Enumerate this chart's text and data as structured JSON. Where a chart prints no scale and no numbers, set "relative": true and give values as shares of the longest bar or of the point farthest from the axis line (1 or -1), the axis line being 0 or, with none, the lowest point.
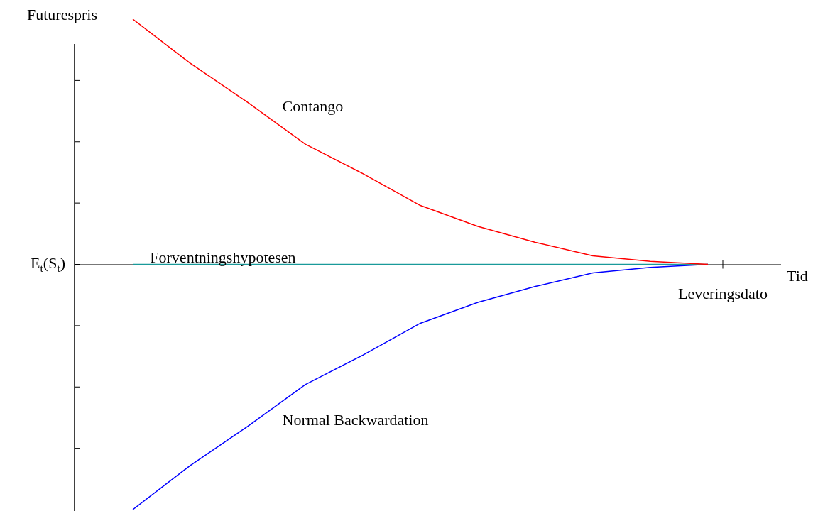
{
  "chart_data": {
    "type": "line",
    "ylabel": "Futurespris",
    "xlabel": "Tid",
    "relative": true,
    "legend": false,
    "marker": "none",
    "categories": [
      null,
      null,
      null,
      null,
      null,
      null,
      null,
      null,
      null,
      null,
      null
    ],
    "series": [
      {
        "name": "Contango",
        "color": "#ff0000",
        "values": [
          1,
          0.82,
          0.66,
          0.49,
          0.37,
          0.24,
          0.155,
          0.09,
          0.035,
          0.012,
          0
        ]
      },
      {
        "name": "Forventningshypotesen",
        "color": "#1a9a9a",
        "values": [
          0,
          0,
          0,
          0,
          0,
          0,
          0,
          0,
          0,
          0,
          0
        ]
      },
      {
        "name": "Normal Backwardation",
        "color": "#0000ff",
        "values": [
          -1,
          -0.82,
          -0.66,
          -0.49,
          -0.37,
          -0.24,
          -0.155,
          -0.09,
          -0.035,
          -0.012,
          0
        ]
      }
    ],
    "annotations": [
      "E$_{t}$(S$_{t}$)",
      "Leveringsdato"
    ]
  }
}
